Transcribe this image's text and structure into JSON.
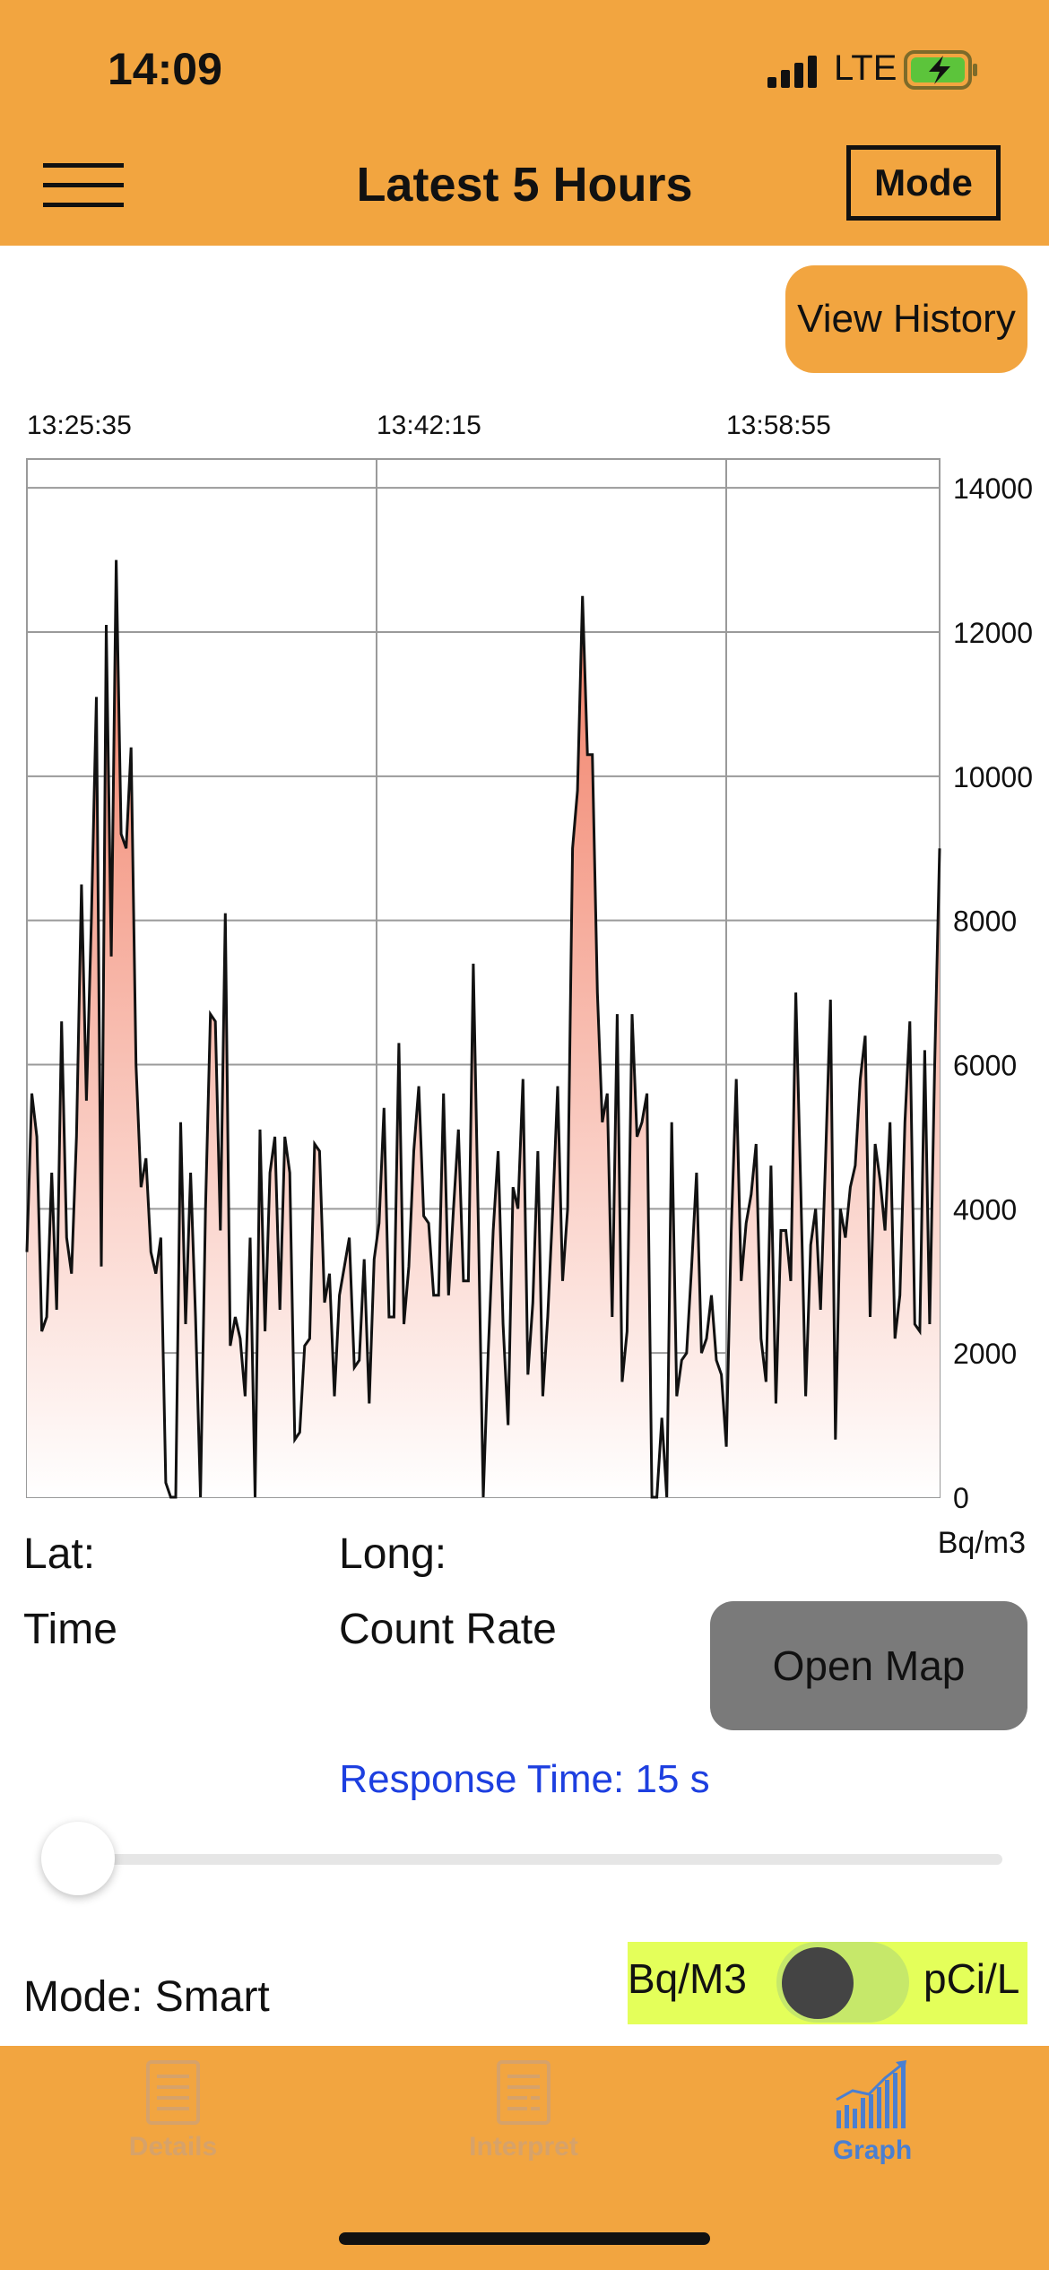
{
  "status": {
    "time": "14:09",
    "network": "LTE"
  },
  "header": {
    "title": "Latest 5 Hours",
    "mode_button": "Mode"
  },
  "actions": {
    "view_history": "View History",
    "open_map": "Open Map"
  },
  "info": {
    "lat_label": "Lat:",
    "long_label": "Long:",
    "time_label": "Time",
    "count_rate_label": "Count Rate"
  },
  "response_time": "Response Time: 15 s",
  "slider_value": 0,
  "mode_text": "Mode: Smart",
  "unit_toggle": {
    "left": "Bq/M3",
    "right": "pCi/L",
    "state": "off"
  },
  "tabs": [
    {
      "label": "Details",
      "icon": "document-list-icon",
      "active": false
    },
    {
      "label": "Interpret",
      "icon": "document-lines-icon",
      "active": false
    },
    {
      "label": "Graph",
      "icon": "bar-graph-icon",
      "active": true
    }
  ],
  "colors": {
    "accent": "#F2A540",
    "fill_top": "#EF6A4D",
    "switch_bg": "#E4FF5A",
    "link": "#1d3fe0",
    "tab_active": "#4a7fd1",
    "tab_inactive": "#d6a26a"
  },
  "chart_data": {
    "type": "area",
    "x_ticks": [
      "13:25:35",
      "13:42:15",
      "13:58:55"
    ],
    "y_ticks": [
      "14000",
      "12000",
      "10000",
      "8000",
      "6000",
      "4000",
      "2000",
      "0"
    ],
    "ylabel": "Bq/m3",
    "ylim": [
      0,
      14400
    ],
    "grid": true,
    "series": [
      {
        "values": [
          3400,
          5600,
          5000,
          2300,
          2500,
          4500,
          2600,
          6600,
          3600,
          3100,
          5000,
          8500,
          5500,
          8000,
          11100,
          3200,
          12100,
          7500,
          13000,
          9200,
          9000,
          10400,
          6000,
          4300,
          4700,
          3400,
          3100,
          3600,
          200,
          0,
          0,
          5200,
          2400,
          4500,
          2500,
          0,
          4000,
          6700,
          6600,
          3700,
          8100,
          2100,
          2500,
          2200,
          1400,
          3600,
          0,
          5100,
          2300,
          4500,
          5000,
          2600,
          5000,
          4500,
          800,
          900,
          2100,
          2200,
          4900,
          4800,
          2700,
          3100,
          1400,
          2800,
          3200,
          3600,
          1800,
          1900,
          3300,
          1300,
          3300,
          3800,
          5400,
          2500,
          2500,
          6300,
          2400,
          3200,
          4800,
          5700,
          3900,
          3800,
          2800,
          2800,
          5600,
          2800,
          4000,
          5100,
          3000,
          3000,
          7400,
          3800,
          0,
          2000,
          3700,
          4800,
          2400,
          1000,
          4300,
          4000,
          5800,
          1700,
          2700,
          4800,
          1400,
          2500,
          4000,
          5700,
          3000,
          4000,
          9000,
          9800,
          12500,
          10300,
          10300,
          7000,
          5200,
          5600,
          2500,
          6700,
          1600,
          2300,
          6700,
          5000,
          5200,
          5600,
          0,
          0,
          1100,
          0,
          5200,
          1400,
          1900,
          2000,
          3200,
          4500,
          2000,
          2200,
          2800,
          1900,
          1700,
          700,
          3700,
          5800,
          3000,
          3800,
          4200,
          4900,
          2200,
          1600,
          4600,
          1300,
          3700,
          3700,
          3000,
          7000,
          4300,
          1400,
          3500,
          4000,
          2600,
          4700,
          6900,
          800,
          4000,
          3600,
          4300,
          4600,
          5800,
          6400,
          2500,
          4900,
          4400,
          3700,
          5200,
          2200,
          2800,
          5200,
          6600,
          2400,
          2300,
          6200,
          2400,
          6000,
          9000
        ]
      }
    ]
  }
}
